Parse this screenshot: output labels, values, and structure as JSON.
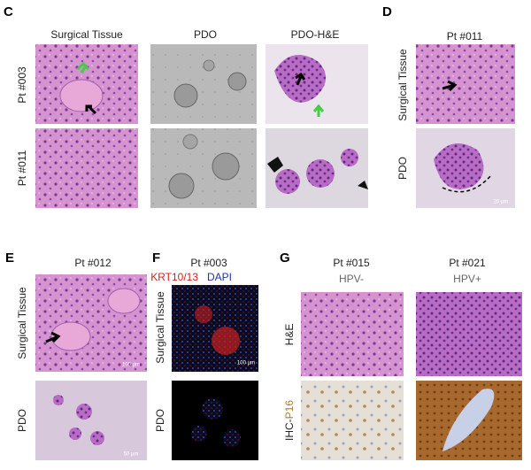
{
  "panels": {
    "C": {
      "label": "C",
      "columns": [
        "Surgical Tissue",
        "PDO",
        "PDO-H&E"
      ],
      "rows": [
        "Pt #003",
        "Pt #011"
      ]
    },
    "D": {
      "label": "D",
      "title": "Pt #011",
      "rows": [
        "Surgical Tissue",
        "PDO"
      ],
      "scale_bar": "20 µm"
    },
    "E": {
      "label": "E",
      "title": "Pt #012",
      "rows": [
        "Surgical Tissue",
        "PDO"
      ],
      "scale_bars": [
        "100 µm",
        "50 µm"
      ]
    },
    "F": {
      "label": "F",
      "title": "Pt #003",
      "stains": [
        "KRT10/13",
        "DAPI"
      ],
      "rows": [
        "Surgical Tissue",
        "PDO"
      ],
      "scale_bar": "100 µm"
    },
    "G": {
      "label": "G",
      "columns": [
        {
          "title": "Pt #015",
          "status": "HPV-"
        },
        {
          "title": "Pt #021",
          "status": "HPV+"
        }
      ],
      "rows": [
        "H&E",
        {
          "prefix": "IHC-",
          "marker": "P16"
        }
      ]
    }
  }
}
